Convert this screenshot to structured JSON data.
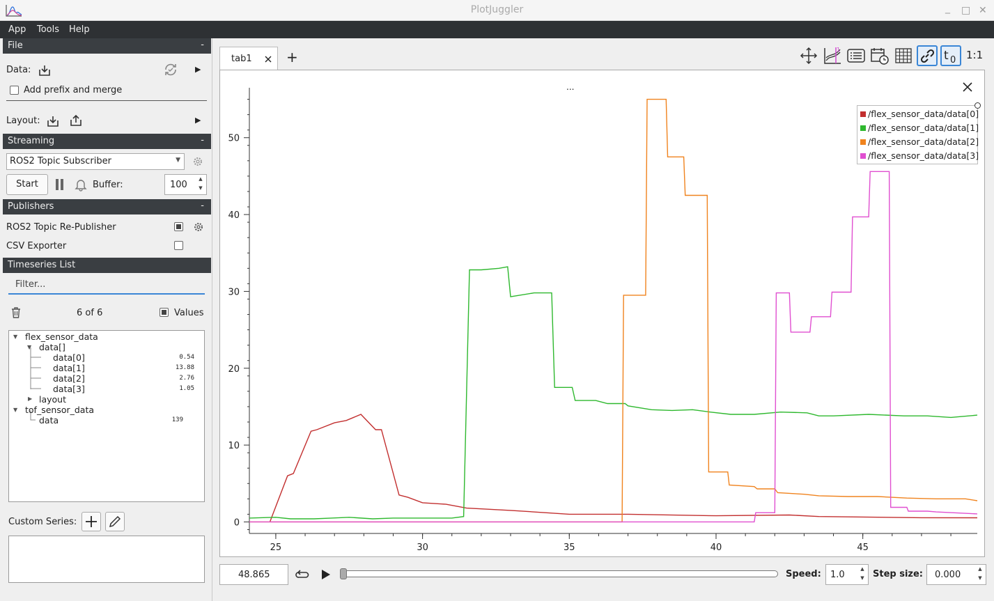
{
  "window": {
    "title": "PlotJuggler",
    "minimize_label": "_",
    "maximize_label": "□",
    "close_label": "✕"
  },
  "menu": {
    "items": [
      "App",
      "Tools",
      "Help"
    ]
  },
  "file_section": {
    "header": "File",
    "collapse": "-",
    "data_label": "Data:",
    "add_prefix_label": "Add prefix and merge",
    "add_prefix_checked": false,
    "layout_label": "Layout:"
  },
  "streaming": {
    "header": "Streaming",
    "collapse": "-",
    "source": "ROS2 Topic Subscriber",
    "start_label": "Start",
    "buffer_label": "Buffer:",
    "buffer_value": "100"
  },
  "publishers": {
    "header": "Publishers",
    "collapse": "-",
    "items": [
      {
        "label": "ROS2 Topic Re-Publisher",
        "checked": true
      },
      {
        "label": "CSV Exporter",
        "checked": false
      }
    ]
  },
  "timeseries": {
    "header": "Timeseries List",
    "filter_placeholder": "Filter...",
    "count": "6 of 6",
    "values_label": "Values",
    "values_checked": true,
    "tree": {
      "flex": "flex_sensor_data",
      "data_arr": "data[]",
      "d0": "data[0]",
      "d0v": "0.54",
      "d1": "data[1]",
      "d1v": "13.88",
      "d2": "data[2]",
      "d2v": "2.76",
      "d3": "data[3]",
      "d3v": "1.05",
      "layout": "layout",
      "tof": "tof_sensor_data",
      "tofdata": "data",
      "tofv": "139"
    }
  },
  "custom_series": {
    "label": "Custom Series:"
  },
  "tabs": {
    "active": "tab1",
    "add": "+"
  },
  "toolbar": {
    "icons": [
      "move-icon",
      "fit-icon",
      "list-icon",
      "calendar-clock-icon",
      "grid-icon",
      "link-icon",
      "time-offset-icon"
    ],
    "ratio_label": "1:1"
  },
  "plot": {
    "title_dots": "...",
    "close": "✕"
  },
  "colors": {
    "data0": "#c22f2f",
    "data1": "#2eb82e",
    "data2": "#f0831e",
    "data3": "#e04fd0",
    "accent": "#3a86d6"
  },
  "chart_data": {
    "type": "line",
    "title": "",
    "xlabel": "",
    "ylabel": "",
    "xlim": [
      24.1,
      48.9
    ],
    "ylim": [
      -1.5,
      56.5
    ],
    "xticks": [
      25,
      30,
      35,
      40,
      45
    ],
    "yticks": [
      0,
      10,
      20,
      30,
      40,
      50
    ],
    "legend": "top-right",
    "series": [
      {
        "name": "/flex_sensor_data/data[0]",
        "color": "#c22f2f",
        "x": [
          24.8,
          25.4,
          25.6,
          26.2,
          26.4,
          27.0,
          27.4,
          27.9,
          28.4,
          28.6,
          29.2,
          29.5,
          30.0,
          30.8,
          31.5,
          33.0,
          35.0,
          37.0,
          40.0,
          42.5,
          43.5,
          47.0,
          48.9
        ],
        "y": [
          0.0,
          6.0,
          6.3,
          11.8,
          12.0,
          12.9,
          13.2,
          14.0,
          12.0,
          12.0,
          3.5,
          3.2,
          2.5,
          2.3,
          1.8,
          1.5,
          1.0,
          1.0,
          0.8,
          0.9,
          0.7,
          0.55,
          0.54
        ]
      },
      {
        "name": "/flex_sensor_data/data[1]",
        "color": "#2eb82e",
        "x": [
          24.1,
          25.0,
          25.5,
          26.3,
          26.9,
          27.5,
          28.3,
          29.0,
          30.0,
          31.0,
          31.4,
          31.6,
          32.0,
          32.6,
          32.9,
          33.0,
          33.8,
          34.4,
          34.5,
          35.1,
          35.2,
          35.9,
          36.3,
          36.9,
          37.0,
          37.8,
          38.5,
          39.2,
          39.8,
          40.5,
          41.3,
          42.2,
          43.1,
          43.5,
          44.0,
          45.2,
          46.4,
          47.2,
          48.0,
          48.9
        ],
        "y": [
          0.5,
          0.6,
          0.4,
          0.4,
          0.5,
          0.6,
          0.4,
          0.5,
          0.5,
          0.5,
          0.7,
          32.8,
          32.8,
          33.0,
          33.2,
          29.3,
          29.8,
          29.8,
          17.5,
          17.5,
          15.8,
          15.8,
          15.4,
          15.4,
          15.1,
          14.6,
          14.5,
          14.6,
          14.3,
          14.0,
          14.0,
          14.3,
          14.2,
          13.8,
          13.8,
          14.0,
          13.8,
          13.8,
          13.6,
          13.9
        ]
      },
      {
        "name": "/flex_sensor_data/data[2]",
        "color": "#f0831e",
        "x": [
          24.1,
          36.8,
          36.85,
          37.6,
          37.65,
          38.3,
          38.35,
          38.9,
          38.95,
          39.7,
          39.75,
          40.4,
          40.45,
          41.3,
          41.4,
          42.0,
          42.1,
          43.0,
          43.5,
          44.5,
          45.5,
          46.5,
          47.5,
          48.5,
          48.9
        ],
        "y": [
          0.0,
          0.0,
          29.5,
          29.5,
          55.0,
          55.0,
          47.5,
          47.5,
          42.5,
          42.5,
          6.5,
          6.5,
          4.8,
          4.6,
          4.3,
          4.3,
          3.8,
          3.6,
          3.4,
          3.3,
          3.3,
          3.1,
          3.0,
          3.0,
          2.76
        ]
      },
      {
        "name": "/flex_sensor_data/data[3]",
        "color": "#e04fd0",
        "x": [
          24.1,
          41.3,
          41.35,
          42.0,
          42.05,
          42.5,
          42.55,
          43.2,
          43.25,
          43.9,
          43.95,
          44.6,
          44.65,
          45.2,
          45.25,
          45.9,
          45.95,
          46.5,
          46.55,
          47.2,
          47.5,
          48.9
        ],
        "y": [
          0.0,
          0.0,
          1.2,
          1.2,
          29.8,
          29.8,
          24.7,
          24.7,
          26.7,
          26.7,
          29.9,
          29.9,
          39.7,
          39.7,
          45.6,
          45.6,
          1.9,
          1.9,
          1.4,
          1.4,
          1.3,
          1.05
        ]
      }
    ]
  },
  "playback": {
    "time_value": "48.865",
    "progress": 0.0,
    "speed_label": "Speed:",
    "speed_value": "1.0",
    "step_label": "Step size:",
    "step_value": "0.000"
  }
}
